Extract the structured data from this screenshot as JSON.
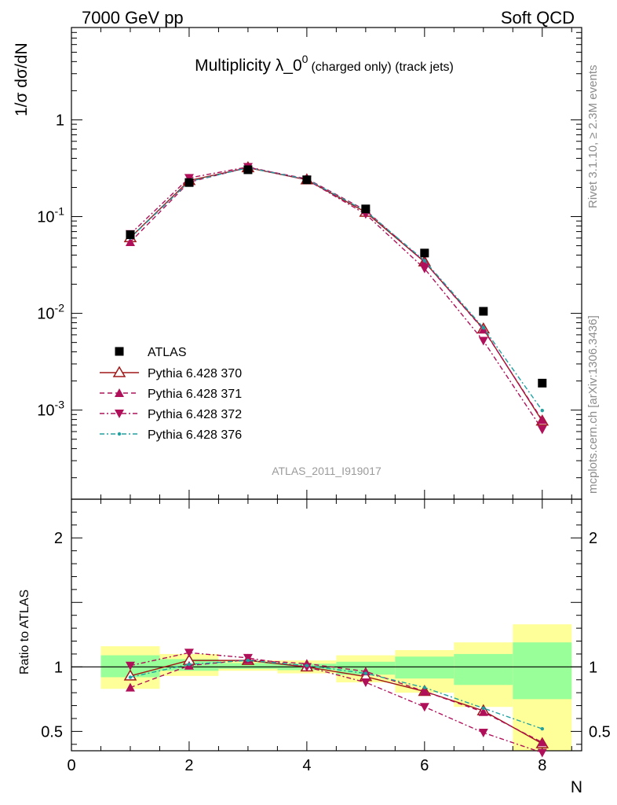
{
  "header": {
    "left": "7000 GeV pp",
    "right": "Soft QCD",
    "title_main": "Multiplicity λ_0",
    "title_sup": "0",
    "title_small": "(charged only) (track jets)",
    "analysis_id": "ATLAS_2011_I919017",
    "side_rivet": "Rivet 3.1.10, ≥ 2.3M events",
    "side_mcplots": "mcplots.cern.ch [arXiv:1306.3436]"
  },
  "axes": {
    "top_ylabel": "1/σ dσ/dN",
    "bottom_ylabel": "Ratio to ATLAS",
    "xlabel": "N"
  },
  "legend": [
    {
      "label": "ATLAS"
    },
    {
      "label": "Pythia 6.428 370"
    },
    {
      "label": "Pythia 6.428 371"
    },
    {
      "label": "Pythia 6.428 372"
    },
    {
      "label": "Pythia 6.428 376"
    }
  ],
  "chart_data": {
    "type": "scatter",
    "title": "Multiplicity λ_0^0 (charged only) (track jets)",
    "xlabel": "N",
    "ylabel": "1/σ dσ/dN",
    "xlim": [
      0,
      8.67
    ],
    "ylim": [
      0.00012,
      9
    ],
    "ylog": true,
    "ratio_ylabel": "Ratio to ATLAS",
    "ratio_ylim": [
      0.35,
      2.3
    ],
    "x_ticks": [
      "0",
      "2",
      "4",
      "6",
      "8"
    ],
    "y_ticks": [
      "10^-3",
      "10^-2",
      "10^-1",
      "1"
    ],
    "ratio_ticks": [
      "0.5",
      "1",
      "2"
    ],
    "x": [
      1,
      2,
      3,
      4,
      5,
      6,
      7,
      8
    ],
    "series": [
      {
        "name": "ATLAS",
        "color": "#000000",
        "marker": "square",
        "values": [
          0.065,
          0.225,
          0.305,
          0.24,
          0.12,
          0.042,
          0.0105,
          0.0019
        ]
      },
      {
        "name": "Pythia 6.428 370",
        "color": "#a01818",
        "marker": "open-triangle-up",
        "line": "solid",
        "values": [
          0.0605,
          0.236,
          0.32,
          0.24,
          0.111,
          0.034,
          0.0069,
          0.00077
        ],
        "ratio": [
          0.93,
          1.05,
          1.05,
          1.0,
          0.925,
          0.81,
          0.66,
          0.405
        ]
      },
      {
        "name": "Pythia 6.428 371",
        "color": "#b0105a",
        "marker": "triangle-up",
        "line": "dashed",
        "values": [
          0.0545,
          0.227,
          0.322,
          0.246,
          0.116,
          0.034,
          0.0068,
          0.00079
        ],
        "ratio": [
          0.84,
          1.01,
          1.055,
          1.025,
          0.965,
          0.81,
          0.65,
          0.415
        ]
      },
      {
        "name": "Pythia 6.428 372",
        "color": "#b0105a",
        "marker": "triangle-down",
        "line": "dashdot",
        "values": [
          0.066,
          0.251,
          0.326,
          0.24,
          0.106,
          0.029,
          0.0052,
          0.00063
        ],
        "ratio": [
          1.01,
          1.11,
          1.07,
          1.0,
          0.88,
          0.69,
          0.49,
          0.335
        ]
      },
      {
        "name": "Pythia 6.428 376",
        "color": "#20a0a0",
        "marker": "dot",
        "line": "dashdot",
        "values": [
          0.06,
          0.23,
          0.32,
          0.243,
          0.114,
          0.035,
          0.0071,
          0.00099
        ],
        "ratio": [
          0.92,
          1.02,
          1.05,
          1.01,
          0.95,
          0.84,
          0.68,
          0.52
        ]
      }
    ],
    "ratio_bands": {
      "yellow": [
        [
          0.83,
          1.16
        ],
        [
          0.93,
          1.1
        ],
        [
          0.97,
          1.05
        ],
        [
          0.95,
          1.05
        ],
        [
          0.88,
          1.09
        ],
        [
          0.8,
          1.13
        ],
        [
          0.69,
          1.19
        ],
        [
          0.35,
          1.33
        ]
      ],
      "green": [
        [
          0.92,
          1.09
        ],
        [
          0.97,
          1.06
        ],
        [
          0.985,
          1.03
        ],
        [
          0.975,
          1.025
        ],
        [
          0.94,
          1.04
        ],
        [
          0.91,
          1.08
        ],
        [
          0.86,
          1.1
        ],
        [
          0.75,
          1.19
        ]
      ]
    }
  }
}
